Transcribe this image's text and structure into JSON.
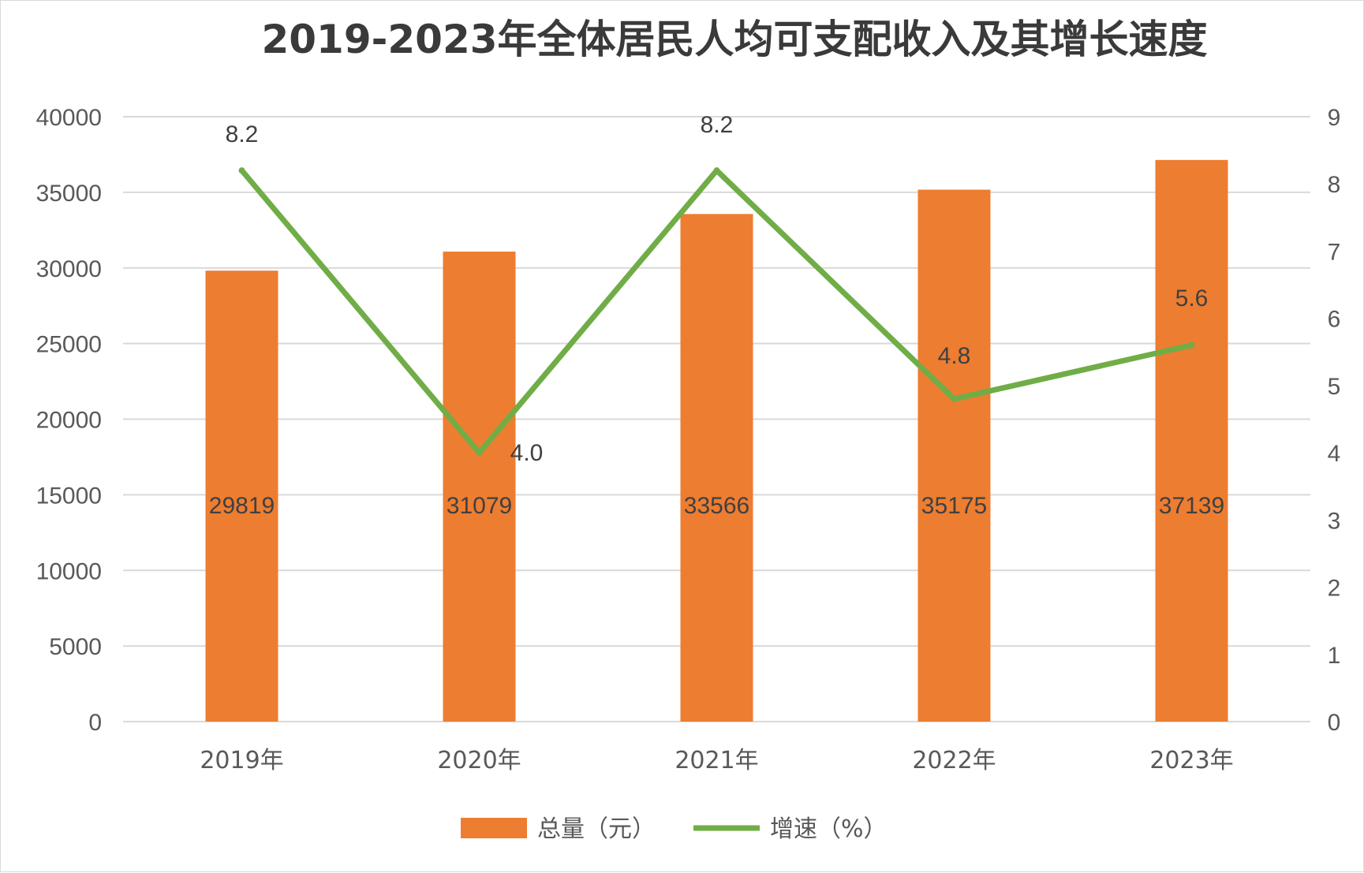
{
  "chart_data": {
    "type": "bar",
    "title": "2019-2023年全体居民人均可支配收入及其增长速度",
    "categories": [
      "2019年",
      "2020年",
      "2021年",
      "2022年",
      "2023年"
    ],
    "series": [
      {
        "name": "总量（元）",
        "type": "bar",
        "axis": "left",
        "values": [
          29819,
          31079,
          33566,
          35175,
          37139
        ],
        "color": "#ed7d31",
        "data_labels": [
          "29819",
          "31079",
          "33566",
          "35175",
          "37139"
        ]
      },
      {
        "name": "增速（%）",
        "type": "line",
        "axis": "right",
        "values": [
          8.2,
          4.0,
          8.2,
          4.8,
          5.6
        ],
        "color": "#70ad47",
        "data_labels": [
          "8.2",
          "4.0",
          "8.2",
          "4.8",
          "5.6"
        ]
      }
    ],
    "y_left": {
      "min": 0,
      "max": 40000,
      "step": 5000,
      "ticks": [
        "0",
        "5000",
        "10000",
        "15000",
        "20000",
        "25000",
        "30000",
        "35000",
        "40000"
      ]
    },
    "y_right": {
      "min": 0,
      "max": 9,
      "step": 1,
      "ticks": [
        "0",
        "1",
        "2",
        "3",
        "4",
        "5",
        "6",
        "7",
        "8",
        "9"
      ]
    },
    "grid": true,
    "legend": "bottom"
  }
}
